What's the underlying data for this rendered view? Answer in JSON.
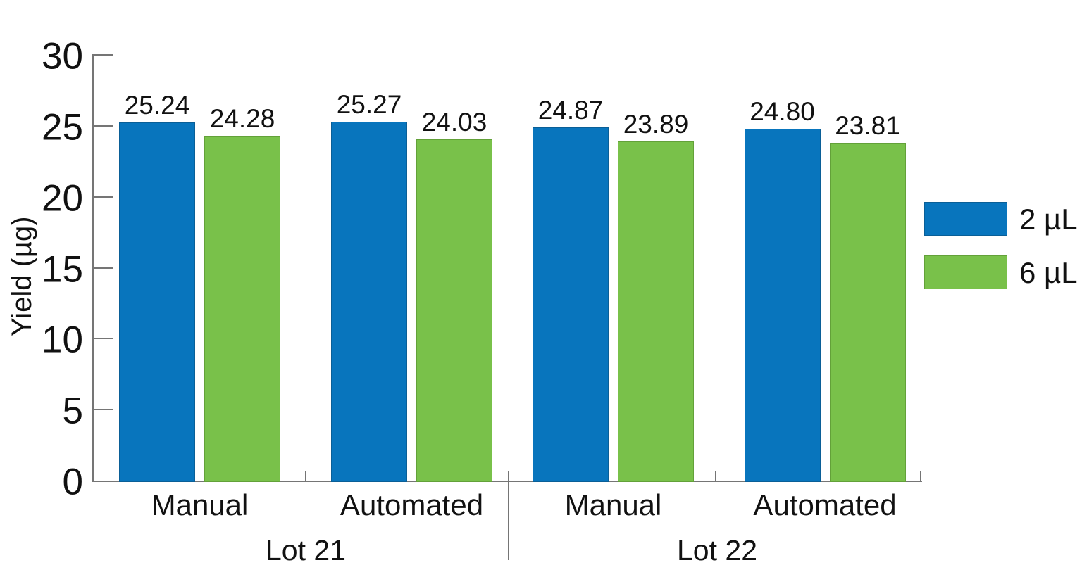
{
  "chart_data": {
    "type": "bar",
    "title": "",
    "ylabel": "Yield (µg)",
    "xlabel": "",
    "ylim": [
      0,
      30
    ],
    "yticks": [
      0,
      5,
      10,
      15,
      20,
      25,
      30
    ],
    "grid": false,
    "legend_position": "right",
    "value_labels_decimals": 2,
    "axis_color": "#757575",
    "text_color": "#111111",
    "groups": [
      {
        "lot": "Lot 21",
        "categories": [
          "Manual",
          "Automated"
        ]
      },
      {
        "lot": "Lot 22",
        "categories": [
          "Manual",
          "Automated"
        ]
      }
    ],
    "category_order": [
      "Lot 21 / Manual",
      "Lot 21 / Automated",
      "Lot 22 / Manual",
      "Lot 22 / Automated"
    ],
    "series": [
      {
        "name": "2 µL",
        "color": "#0875bd",
        "border_color": "#0a5f97",
        "values": [
          25.24,
          25.27,
          24.87,
          24.8
        ]
      },
      {
        "name": "6 µL",
        "color": "#79c14a",
        "border_color": "#63a139",
        "values": [
          24.28,
          24.03,
          23.89,
          23.81
        ]
      }
    ]
  }
}
